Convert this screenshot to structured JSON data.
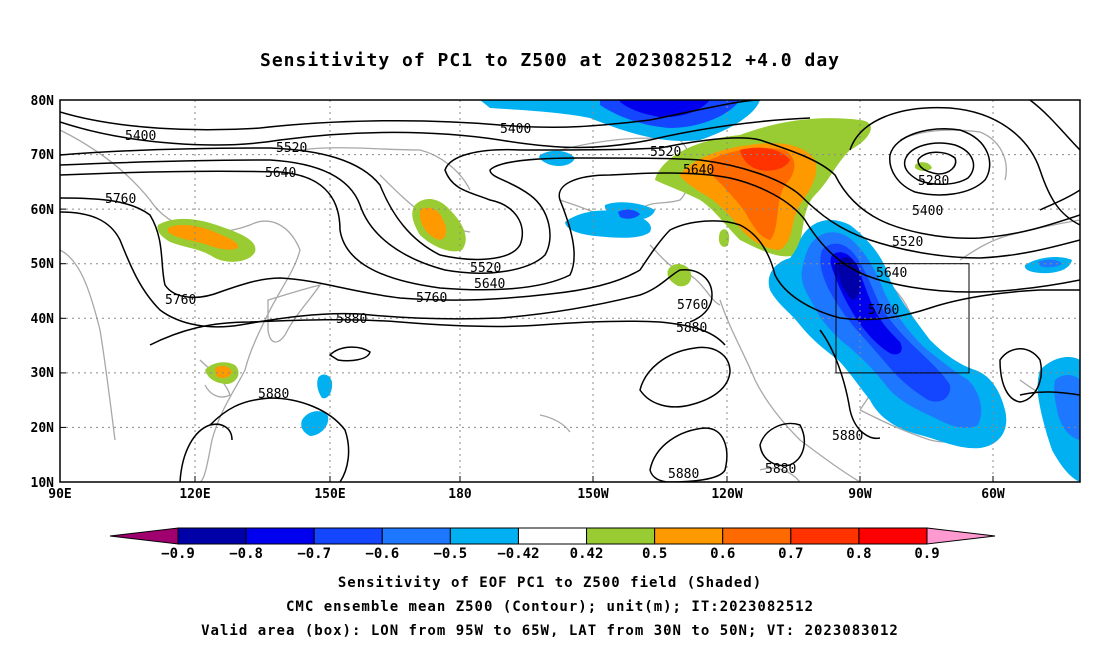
{
  "title": "Sensitivity of PC1 to Z500 at 2023082512 +4.0 day",
  "lat_labels": [
    "80N",
    "70N",
    "60N",
    "50N",
    "40N",
    "30N",
    "20N",
    "10N"
  ],
  "lon_labels": [
    "90E",
    "120E",
    "150E",
    "180",
    "150W",
    "120W",
    "90W",
    "60W"
  ],
  "colorbar": {
    "labels": [
      "-0.9",
      "-0.8",
      "-0.7",
      "-0.6",
      "-0.5",
      "-0.42",
      "0.42",
      "0.5",
      "0.6",
      "0.7",
      "0.8",
      "0.9"
    ],
    "colors": [
      "#a0006e",
      "#0000a8",
      "#0000ee",
      "#1446ff",
      "#1e78ff",
      "#00b0f0",
      "#ffffff",
      "#99cc33",
      "#ff9900",
      "#ff6a00",
      "#ff3300",
      "#ff0000",
      "#ff9ad0"
    ]
  },
  "contour_labels": {
    "c5400a": "5400",
    "c5400b": "5400",
    "c5400c": "5400",
    "c5520a": "5520",
    "c5520b": "5520",
    "c5520c": "5520",
    "c5520d": "5520",
    "c5640a": "5640",
    "c5640b": "5640",
    "c5640c": "5640",
    "c5640d": "5640",
    "c5760a": "5760",
    "c5760b": "5760",
    "c5760c": "5760",
    "c5760d": "5760",
    "c5760e": "5760",
    "c5880a": "5880",
    "c5880b": "5880",
    "c5880c": "5880",
    "c5880d": "5880",
    "c5880e": "5880",
    "c5880f": "5880",
    "c5280": "5280"
  },
  "valid_box": {
    "lon_from": "95W",
    "lon_to": "65W",
    "lat_from": "30N",
    "lat_to": "50N"
  },
  "footer": {
    "line1": "Sensitivity of EOF PC1 to Z500 field (Shaded)",
    "line2": "CMC ensemble mean Z500 (Contour); unit(m); IT:2023082512",
    "line3": "Valid area (box): LON from 95W to 65W, LAT from 30N to 50N; VT: 2023083012"
  }
}
